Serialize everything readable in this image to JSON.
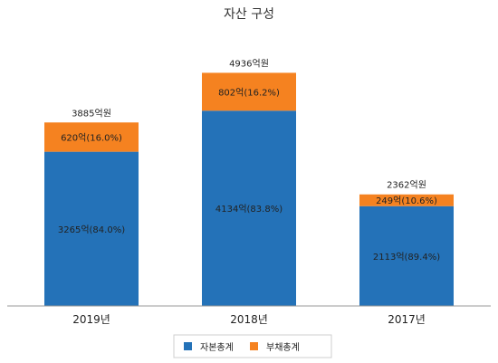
{
  "chart_data": {
    "type": "bar",
    "stacked": true,
    "title": "자산 구성",
    "categories": [
      "2019년",
      "2018년",
      "2017년"
    ],
    "series": [
      {
        "name": "자본총계",
        "color": "#2472b8",
        "values": [
          3265,
          4134,
          2113
        ],
        "labels": [
          "3265억(84.0%)",
          "4134억(83.8%)",
          "2113억(89.4%)"
        ]
      },
      {
        "name": "부채총계",
        "color": "#f58220",
        "values": [
          620,
          802,
          249
        ],
        "labels": [
          "620억(16.0%)",
          "802억(16.2%)",
          "249억(10.6%)"
        ]
      }
    ],
    "totals": [
      "3885억원",
      "4936억원",
      "2362억원"
    ],
    "total_values": [
      3885,
      4936,
      2362
    ],
    "ylim": [
      0,
      5500
    ],
    "grid": false,
    "legend_position": "bottom"
  }
}
